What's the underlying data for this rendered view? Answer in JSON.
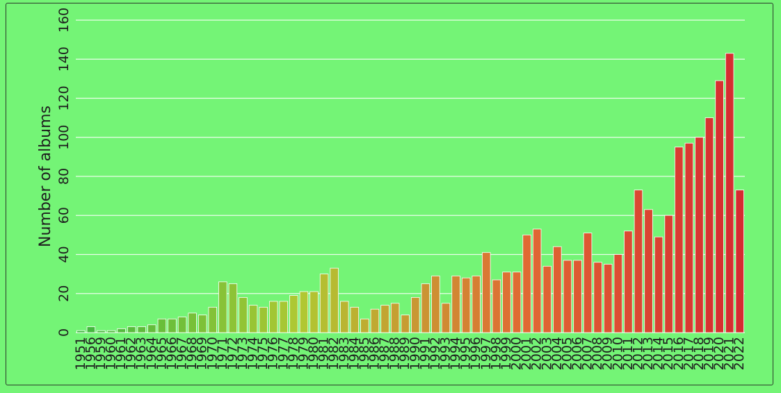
{
  "chart_data": {
    "type": "bar",
    "title": "",
    "xlabel": "",
    "ylabel": "Number of albums",
    "ylim": [
      0,
      160
    ],
    "yticks": [
      0,
      20,
      40,
      60,
      80,
      100,
      120,
      140,
      160
    ],
    "grid": true,
    "color_scale": [
      "#3fb83f",
      "#b0c832",
      "#e06b33",
      "#d62a30"
    ],
    "categories": [
      "1951",
      "1956",
      "1959",
      "1960",
      "1961",
      "1962",
      "1963",
      "1964",
      "1965",
      "1966",
      "1967",
      "1968",
      "1969",
      "1970",
      "1971",
      "1972",
      "1973",
      "1974",
      "1975",
      "1976",
      "1977",
      "1978",
      "1979",
      "1980",
      "1981",
      "1982",
      "1983",
      "1984",
      "1985",
      "1986",
      "1987",
      "1988",
      "1989",
      "1990",
      "1991",
      "1992",
      "1993",
      "1994",
      "1995",
      "1996",
      "1997",
      "1998",
      "1999",
      "2000",
      "2001",
      "2002",
      "2003",
      "2004",
      "2005",
      "2006",
      "2007",
      "2008",
      "2009",
      "2010",
      "2011",
      "2012",
      "2013",
      "2014",
      "2015",
      "2016",
      "2017",
      "2018",
      "2019",
      "2020",
      "2021",
      "2022"
    ],
    "values": [
      1,
      3,
      1,
      1,
      2,
      3,
      3,
      4,
      7,
      7,
      8,
      10,
      9,
      13,
      26,
      25,
      18,
      14,
      13,
      16,
      16,
      19,
      21,
      21,
      30,
      33,
      16,
      13,
      7,
      12,
      14,
      15,
      9,
      18,
      25,
      29,
      15,
      29,
      28,
      29,
      41,
      27,
      31,
      31,
      50,
      53,
      34,
      44,
      37,
      37,
      51,
      36,
      35,
      40,
      52,
      73,
      63,
      49,
      60,
      95,
      97,
      100,
      110,
      129,
      143,
      73
    ]
  }
}
